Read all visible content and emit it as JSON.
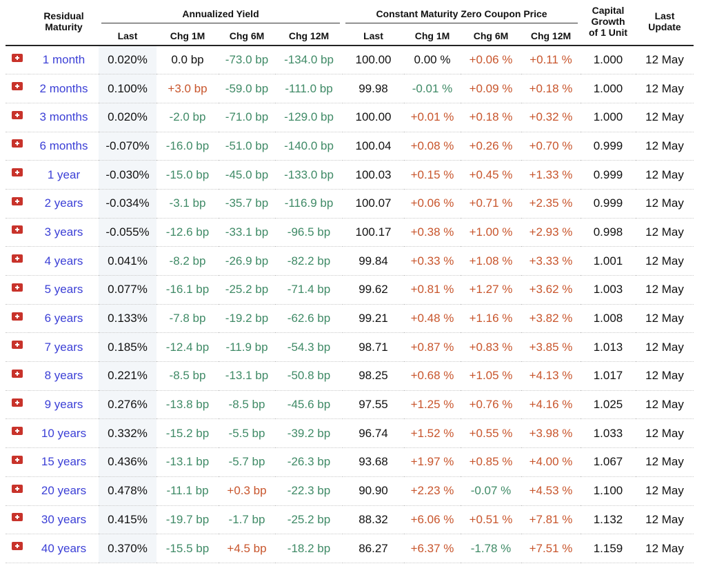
{
  "headers": {
    "residual_maturity": [
      "Residual",
      "Maturity"
    ],
    "annualized_yield": "Annualized Yield",
    "zero_coupon_price": "Constant Maturity Zero Coupon Price",
    "capital_growth": [
      "Capital",
      "Growth",
      "of 1 Unit"
    ],
    "last_update": [
      "Last",
      "Update"
    ],
    "sub": {
      "last": "Last",
      "chg_1m": "Chg 1M",
      "chg_6m": "Chg 6M",
      "chg_12m": "Chg 12M"
    }
  },
  "colors": {
    "positive": "#c8552c",
    "negative": "#3f8a66",
    "link": "#3b3fd6",
    "flag": "#c8332b"
  },
  "flag_icon": "swiss-flag-icon",
  "rows": [
    {
      "maturity": "1 month",
      "yield_last": "0.020%",
      "y_1m": "0.0 bp",
      "y_6m": "-73.0 bp",
      "y_12m": "-134.0 bp",
      "price_last": "100.00",
      "p_1m": "0.00 %",
      "p_6m": "+0.06 %",
      "p_12m": "+0.11 %",
      "capital": "1.000",
      "update": "12 May"
    },
    {
      "maturity": "2 months",
      "yield_last": "0.100%",
      "y_1m": "+3.0 bp",
      "y_6m": "-59.0 bp",
      "y_12m": "-111.0 bp",
      "price_last": "99.98",
      "p_1m": "-0.01 %",
      "p_6m": "+0.09 %",
      "p_12m": "+0.18 %",
      "capital": "1.000",
      "update": "12 May"
    },
    {
      "maturity": "3 months",
      "yield_last": "0.020%",
      "y_1m": "-2.0 bp",
      "y_6m": "-71.0 bp",
      "y_12m": "-129.0 bp",
      "price_last": "100.00",
      "p_1m": "+0.01 %",
      "p_6m": "+0.18 %",
      "p_12m": "+0.32 %",
      "capital": "1.000",
      "update": "12 May"
    },
    {
      "maturity": "6 months",
      "yield_last": "-0.070%",
      "y_1m": "-16.0 bp",
      "y_6m": "-51.0 bp",
      "y_12m": "-140.0 bp",
      "price_last": "100.04",
      "p_1m": "+0.08 %",
      "p_6m": "+0.26 %",
      "p_12m": "+0.70 %",
      "capital": "0.999",
      "update": "12 May"
    },
    {
      "maturity": "1 year",
      "yield_last": "-0.030%",
      "y_1m": "-15.0 bp",
      "y_6m": "-45.0 bp",
      "y_12m": "-133.0 bp",
      "price_last": "100.03",
      "p_1m": "+0.15 %",
      "p_6m": "+0.45 %",
      "p_12m": "+1.33 %",
      "capital": "0.999",
      "update": "12 May"
    },
    {
      "maturity": "2 years",
      "yield_last": "-0.034%",
      "y_1m": "-3.1 bp",
      "y_6m": "-35.7 bp",
      "y_12m": "-116.9 bp",
      "price_last": "100.07",
      "p_1m": "+0.06 %",
      "p_6m": "+0.71 %",
      "p_12m": "+2.35 %",
      "capital": "0.999",
      "update": "12 May"
    },
    {
      "maturity": "3 years",
      "yield_last": "-0.055%",
      "y_1m": "-12.6 bp",
      "y_6m": "-33.1 bp",
      "y_12m": "-96.5 bp",
      "price_last": "100.17",
      "p_1m": "+0.38 %",
      "p_6m": "+1.00 %",
      "p_12m": "+2.93 %",
      "capital": "0.998",
      "update": "12 May"
    },
    {
      "maturity": "4 years",
      "yield_last": "0.041%",
      "y_1m": "-8.2 bp",
      "y_6m": "-26.9 bp",
      "y_12m": "-82.2 bp",
      "price_last": "99.84",
      "p_1m": "+0.33 %",
      "p_6m": "+1.08 %",
      "p_12m": "+3.33 %",
      "capital": "1.001",
      "update": "12 May"
    },
    {
      "maturity": "5 years",
      "yield_last": "0.077%",
      "y_1m": "-16.1 bp",
      "y_6m": "-25.2 bp",
      "y_12m": "-71.4 bp",
      "price_last": "99.62",
      "p_1m": "+0.81 %",
      "p_6m": "+1.27 %",
      "p_12m": "+3.62 %",
      "capital": "1.003",
      "update": "12 May"
    },
    {
      "maturity": "6 years",
      "yield_last": "0.133%",
      "y_1m": "-7.8 bp",
      "y_6m": "-19.2 bp",
      "y_12m": "-62.6 bp",
      "price_last": "99.21",
      "p_1m": "+0.48 %",
      "p_6m": "+1.16 %",
      "p_12m": "+3.82 %",
      "capital": "1.008",
      "update": "12 May"
    },
    {
      "maturity": "7 years",
      "yield_last": "0.185%",
      "y_1m": "-12.4 bp",
      "y_6m": "-11.9 bp",
      "y_12m": "-54.3 bp",
      "price_last": "98.71",
      "p_1m": "+0.87 %",
      "p_6m": "+0.83 %",
      "p_12m": "+3.85 %",
      "capital": "1.013",
      "update": "12 May"
    },
    {
      "maturity": "8 years",
      "yield_last": "0.221%",
      "y_1m": "-8.5 bp",
      "y_6m": "-13.1 bp",
      "y_12m": "-50.8 bp",
      "price_last": "98.25",
      "p_1m": "+0.68 %",
      "p_6m": "+1.05 %",
      "p_12m": "+4.13 %",
      "capital": "1.017",
      "update": "12 May"
    },
    {
      "maturity": "9 years",
      "yield_last": "0.276%",
      "y_1m": "-13.8 bp",
      "y_6m": "-8.5 bp",
      "y_12m": "-45.6 bp",
      "price_last": "97.55",
      "p_1m": "+1.25 %",
      "p_6m": "+0.76 %",
      "p_12m": "+4.16 %",
      "capital": "1.025",
      "update": "12 May"
    },
    {
      "maturity": "10 years",
      "yield_last": "0.332%",
      "y_1m": "-15.2 bp",
      "y_6m": "-5.5 bp",
      "y_12m": "-39.2 bp",
      "price_last": "96.74",
      "p_1m": "+1.52 %",
      "p_6m": "+0.55 %",
      "p_12m": "+3.98 %",
      "capital": "1.033",
      "update": "12 May"
    },
    {
      "maturity": "15 years",
      "yield_last": "0.436%",
      "y_1m": "-13.1 bp",
      "y_6m": "-5.7 bp",
      "y_12m": "-26.3 bp",
      "price_last": "93.68",
      "p_1m": "+1.97 %",
      "p_6m": "+0.85 %",
      "p_12m": "+4.00 %",
      "capital": "1.067",
      "update": "12 May"
    },
    {
      "maturity": "20 years",
      "yield_last": "0.478%",
      "y_1m": "-11.1 bp",
      "y_6m": "+0.3 bp",
      "y_12m": "-22.3 bp",
      "price_last": "90.90",
      "p_1m": "+2.23 %",
      "p_6m": "-0.07 %",
      "p_12m": "+4.53 %",
      "capital": "1.100",
      "update": "12 May"
    },
    {
      "maturity": "30 years",
      "yield_last": "0.415%",
      "y_1m": "-19.7 bp",
      "y_6m": "-1.7 bp",
      "y_12m": "-25.2 bp",
      "price_last": "88.32",
      "p_1m": "+6.06 %",
      "p_6m": "+0.51 %",
      "p_12m": "+7.81 %",
      "capital": "1.132",
      "update": "12 May"
    },
    {
      "maturity": "40 years",
      "yield_last": "0.370%",
      "y_1m": "-15.5 bp",
      "y_6m": "+4.5 bp",
      "y_12m": "-18.2 bp",
      "price_last": "86.27",
      "p_1m": "+6.37 %",
      "p_6m": "-1.78 %",
      "p_12m": "+7.51 %",
      "capital": "1.159",
      "update": "12 May"
    }
  ]
}
